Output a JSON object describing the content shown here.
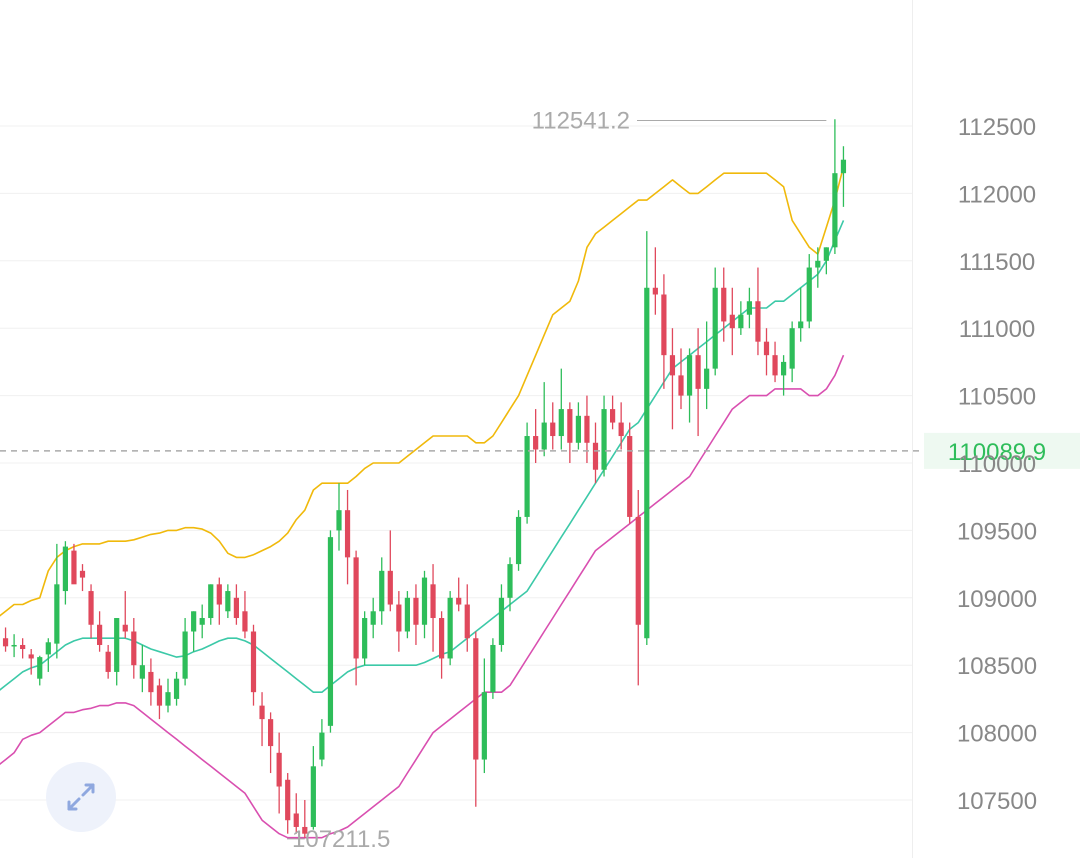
{
  "chart_data": {
    "type": "candlestick",
    "title": "",
    "xlabel": "",
    "ylabel": "",
    "ylim": [
      107100,
      112900
    ],
    "y_ticks": [
      "112500",
      "112000",
      "111500",
      "111000",
      "110500",
      "110000",
      "109500",
      "109000",
      "108500",
      "108000",
      "107500"
    ],
    "y_tick_values": [
      112500,
      112000,
      111500,
      111000,
      110500,
      110000,
      109500,
      109000,
      108500,
      108000,
      107500
    ],
    "grid": true,
    "colors": {
      "up": "#2ebd5a",
      "down": "#e0485c",
      "upper_band": "#f0b90b",
      "middle_band": "#3cc9a8",
      "lower_band": "#d94fb0",
      "current_price_label": "#2ebd5a",
      "grid": "#f0f0f0",
      "axis_text": "#888888",
      "annotation_text": "#aaaaaa"
    },
    "current_price": {
      "label": "110089.9",
      "value": 110089.9
    },
    "annotations": {
      "high": {
        "label": "112541.2",
        "value": 112541.2,
        "index": 97
      },
      "low": {
        "label": "107211.5",
        "value": 107211.5,
        "index": 36
      }
    },
    "candles": [
      [
        108800,
        108870,
        108740,
        108700
      ],
      [
        108700,
        108780,
        108640,
        108600
      ],
      [
        108650,
        108730,
        108650,
        108560
      ],
      [
        108650,
        108700,
        108620,
        108550
      ],
      [
        108580,
        108620,
        108550,
        108430
      ],
      [
        108400,
        108570,
        108560,
        108350
      ],
      [
        108580,
        108700,
        108670,
        108450
      ],
      [
        108660,
        109400,
        109100,
        108550
      ],
      [
        109050,
        109420,
        109380,
        108950
      ],
      [
        109350,
        109400,
        109100,
        109200
      ],
      [
        109200,
        109250,
        109150,
        109050
      ],
      [
        109050,
        109100,
        108800,
        108700
      ],
      [
        108800,
        108900,
        108650,
        108600
      ],
      [
        108600,
        108650,
        108450,
        108400
      ],
      [
        108450,
        108850,
        108850,
        108350
      ],
      [
        108800,
        109050,
        108750,
        108700
      ],
      [
        108750,
        108850,
        108500,
        108400
      ],
      [
        108400,
        108650,
        108500,
        108300
      ],
      [
        108450,
        108550,
        108300,
        108200
      ],
      [
        108350,
        108400,
        108200,
        108100
      ],
      [
        108200,
        108400,
        108300,
        108150
      ],
      [
        108250,
        108450,
        108400,
        108200
      ],
      [
        108400,
        108850,
        108750,
        108350
      ],
      [
        108750,
        108900,
        108900,
        108600
      ],
      [
        108800,
        108950,
        108850,
        108700
      ],
      [
        108850,
        109100,
        109100,
        108800
      ],
      [
        109100,
        109150,
        108950,
        108800
      ],
      [
        108900,
        109100,
        109050,
        108850
      ],
      [
        109000,
        109100,
        108850,
        108800
      ],
      [
        108900,
        109050,
        108750,
        108700
      ],
      [
        108750,
        108800,
        108300,
        108200
      ],
      [
        108200,
        108300,
        108100,
        107900
      ],
      [
        108100,
        108150,
        107900,
        107700
      ],
      [
        107850,
        108000,
        107600,
        107400
      ],
      [
        107650,
        107700,
        107350,
        107250
      ],
      [
        107400,
        107550,
        107300,
        107250
      ],
      [
        107300,
        107500,
        107250,
        107220
      ],
      [
        107300,
        107900,
        107750,
        107280
      ],
      [
        107800,
        108100,
        108000,
        107750
      ],
      [
        108050,
        109500,
        109450,
        108000
      ],
      [
        109500,
        109850,
        109650,
        109350
      ],
      [
        109650,
        109800,
        109300,
        109100
      ],
      [
        109300,
        109350,
        108550,
        108350
      ],
      [
        108550,
        108900,
        108850,
        108500
      ],
      [
        108800,
        109000,
        108900,
        108700
      ],
      [
        108900,
        109300,
        109200,
        108800
      ],
      [
        109200,
        109500,
        108950,
        108900
      ],
      [
        108950,
        109050,
        108750,
        108600
      ],
      [
        108750,
        109050,
        109000,
        108700
      ],
      [
        109000,
        109100,
        108800,
        108650
      ],
      [
        108800,
        109200,
        109150,
        108700
      ],
      [
        109100,
        109250,
        108850,
        108600
      ],
      [
        108850,
        108900,
        108550,
        108400
      ],
      [
        108550,
        109050,
        109000,
        108500
      ],
      [
        109000,
        109150,
        108950,
        108900
      ],
      [
        108950,
        109100,
        108700,
        108600
      ],
      [
        108700,
        108750,
        107800,
        107450
      ],
      [
        107800,
        108550,
        108300,
        107700
      ],
      [
        108300,
        108700,
        108650,
        108250
      ],
      [
        108650,
        109100,
        109000,
        108600
      ],
      [
        109000,
        109300,
        109250,
        108900
      ],
      [
        109250,
        109650,
        109600,
        109200
      ],
      [
        109600,
        110300,
        110200,
        109550
      ],
      [
        110200,
        110400,
        110100,
        110000
      ],
      [
        110100,
        110600,
        110300,
        110050
      ],
      [
        110300,
        110450,
        110200,
        110100
      ],
      [
        110200,
        110700,
        110400,
        110100
      ],
      [
        110400,
        110450,
        110150,
        110000
      ],
      [
        110150,
        110450,
        110350,
        110100
      ],
      [
        110350,
        110500,
        110150,
        110000
      ],
      [
        110150,
        110300,
        109950,
        109850
      ],
      [
        109950,
        110500,
        110400,
        109900
      ],
      [
        110400,
        110500,
        110300,
        110250
      ],
      [
        110300,
        110450,
        110200,
        110100
      ],
      [
        110200,
        110300,
        109600,
        109550
      ],
      [
        109600,
        109800,
        108800,
        108350
      ],
      [
        108700,
        111720,
        111300,
        108650
      ],
      [
        111300,
        111600,
        111250,
        111100
      ],
      [
        111250,
        111400,
        110800,
        110550
      ],
      [
        110800,
        111000,
        110650,
        110250
      ],
      [
        110650,
        110850,
        110500,
        110400
      ],
      [
        110500,
        110850,
        110800,
        110300
      ],
      [
        110800,
        111000,
        110550,
        110200
      ],
      [
        110550,
        111050,
        110700,
        110400
      ],
      [
        110700,
        111450,
        111300,
        110650
      ],
      [
        111300,
        111450,
        111050,
        110900
      ],
      [
        111100,
        111300,
        111000,
        110800
      ],
      [
        111000,
        111200,
        111100,
        110950
      ],
      [
        111100,
        111300,
        111200,
        111000
      ],
      [
        111200,
        111450,
        110900,
        110800
      ],
      [
        110900,
        111000,
        110800,
        110650
      ],
      [
        110800,
        110900,
        110650,
        110600
      ],
      [
        110650,
        110800,
        110750,
        110500
      ],
      [
        110700,
        111050,
        111000,
        110600
      ],
      [
        111000,
        111300,
        111050,
        110900
      ],
      [
        111050,
        111550,
        111450,
        111000
      ],
      [
        111450,
        111600,
        111500,
        111300
      ],
      [
        111500,
        111600,
        111600,
        111400
      ],
      [
        111600,
        112550,
        112150,
        111550
      ],
      [
        112150,
        112350,
        112250,
        111900
      ]
    ],
    "upper_band": [
      108850,
      108900,
      108950,
      108950,
      108980,
      109000,
      109200,
      109300,
      109350,
      109380,
      109400,
      109400,
      109400,
      109420,
      109420,
      109420,
      109430,
      109450,
      109470,
      109480,
      109500,
      109500,
      109520,
      109520,
      109510,
      109480,
      109420,
      109330,
      109300,
      109300,
      109320,
      109350,
      109380,
      109420,
      109480,
      109580,
      109650,
      109800,
      109850,
      109850,
      109850,
      109850,
      109900,
      109960,
      110000,
      110000,
      110000,
      110000,
      110050,
      110100,
      110150,
      110200,
      110200,
      110200,
      110200,
      110200,
      110150,
      110150,
      110200,
      110300,
      110400,
      110500,
      110650,
      110800,
      110950,
      111100,
      111150,
      111200,
      111350,
      111600,
      111700,
      111750,
      111800,
      111850,
      111900,
      111950,
      111950,
      112000,
      112050,
      112100,
      112050,
      112000,
      112000,
      112050,
      112100,
      112150,
      112150,
      112150,
      112150,
      112150,
      112150,
      112100,
      112050,
      111800,
      111700,
      111600,
      111550,
      111750,
      111950,
      112200
    ],
    "middle_band": [
      108300,
      108350,
      108400,
      108450,
      108480,
      108500,
      108550,
      108600,
      108650,
      108680,
      108700,
      108700,
      108700,
      108700,
      108700,
      108700,
      108680,
      108650,
      108620,
      108600,
      108580,
      108560,
      108570,
      108600,
      108620,
      108650,
      108680,
      108700,
      108700,
      108680,
      108650,
      108600,
      108550,
      108500,
      108450,
      108400,
      108350,
      108300,
      108300,
      108350,
      108400,
      108450,
      108480,
      108500,
      108500,
      108500,
      108500,
      108500,
      108500,
      108500,
      108520,
      108550,
      108580,
      108600,
      108650,
      108700,
      108750,
      108800,
      108850,
      108900,
      108950,
      109000,
      109050,
      109150,
      109250,
      109350,
      109450,
      109550,
      109650,
      109750,
      109850,
      109950,
      110050,
      110150,
      110250,
      110300,
      110400,
      110500,
      110600,
      110700,
      110750,
      110800,
      110850,
      110900,
      110950,
      111000,
      111050,
      111100,
      111150,
      111150,
      111150,
      111200,
      111200,
      111250,
      111300,
      111350,
      111400,
      111500,
      111650,
      111800
    ],
    "lower_band": [
      107750,
      107800,
      107850,
      107950,
      107980,
      108000,
      108050,
      108100,
      108150,
      108150,
      108170,
      108180,
      108200,
      108200,
      108220,
      108220,
      108200,
      108150,
      108100,
      108050,
      108000,
      107950,
      107900,
      107850,
      107800,
      107750,
      107700,
      107650,
      107600,
      107550,
      107450,
      107350,
      107300,
      107250,
      107220,
      107220,
      107220,
      107220,
      107220,
      107250,
      107270,
      107300,
      107350,
      107400,
      107450,
      107500,
      107550,
      107600,
      107700,
      107800,
      107900,
      108000,
      108050,
      108100,
      108150,
      108200,
      108250,
      108300,
      108300,
      108300,
      108350,
      108450,
      108550,
      108650,
      108750,
      108850,
      108950,
      109050,
      109150,
      109250,
      109350,
      109400,
      109450,
      109500,
      109550,
      109600,
      109650,
      109700,
      109750,
      109800,
      109850,
      109900,
      110000,
      110100,
      110200,
      110300,
      110400,
      110450,
      110500,
      110500,
      110500,
      110550,
      110550,
      110550,
      110550,
      110500,
      110500,
      110550,
      110650,
      110800
    ]
  }
}
